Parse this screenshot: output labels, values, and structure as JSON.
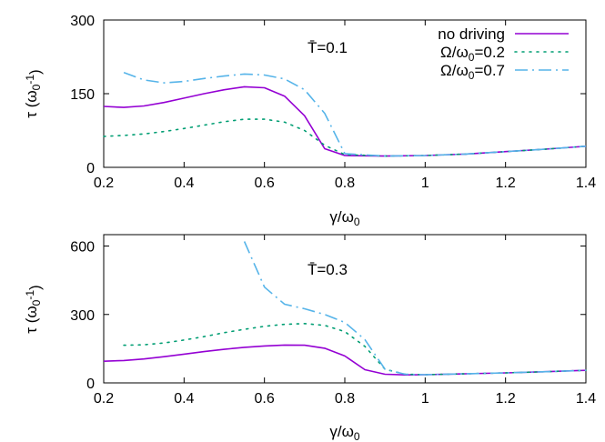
{
  "chart_data": [
    {
      "type": "line",
      "annotation": "T̄=0.1",
      "xlabel": "γ/ω0",
      "ylabel": "τ (ω0^-1)",
      "xlim": [
        0.2,
        1.4
      ],
      "ylim": [
        0,
        300
      ],
      "x_ticks": [
        "0.2",
        "0.4",
        "0.6",
        "0.8",
        "1",
        "1.2",
        "1.4"
      ],
      "y_ticks": [
        "0",
        "150",
        "300"
      ],
      "legend_position": "top-right",
      "series": [
        {
          "name": "no driving",
          "color": "#9400d3",
          "style": "solid",
          "x": [
            0.2,
            0.25,
            0.3,
            0.35,
            0.4,
            0.45,
            0.5,
            0.55,
            0.6,
            0.65,
            0.7,
            0.75,
            0.8,
            0.9,
            1.0,
            1.1,
            1.2,
            1.3,
            1.4
          ],
          "y": [
            124,
            122,
            125,
            132,
            141,
            150,
            158,
            164,
            162,
            145,
            105,
            38,
            24,
            23,
            24,
            27,
            32,
            37,
            43
          ]
        },
        {
          "name": "Ω/ω0=0.2",
          "color": "#009e73",
          "style": "dotted",
          "x": [
            0.2,
            0.25,
            0.3,
            0.35,
            0.4,
            0.45,
            0.5,
            0.55,
            0.6,
            0.65,
            0.7,
            0.75,
            0.8,
            0.9,
            1.0,
            1.1,
            1.2,
            1.3,
            1.4
          ],
          "y": [
            63,
            65,
            68,
            73,
            79,
            86,
            93,
            98,
            98,
            92,
            75,
            45,
            26,
            23,
            24,
            27,
            32,
            37,
            43
          ]
        },
        {
          "name": "Ω/ω0=0.7",
          "color": "#56b4e9",
          "style": "dashdot",
          "x": [
            0.25,
            0.3,
            0.35,
            0.4,
            0.45,
            0.5,
            0.55,
            0.6,
            0.65,
            0.7,
            0.75,
            0.8,
            0.9,
            1.0,
            1.1,
            1.2,
            1.3,
            1.4
          ],
          "y": [
            193,
            178,
            172,
            175,
            181,
            186,
            190,
            188,
            180,
            158,
            110,
            28,
            23,
            24,
            27,
            32,
            37,
            43
          ]
        }
      ]
    },
    {
      "type": "line",
      "annotation": "T̄=0.3",
      "xlabel": "γ/ω0",
      "ylabel": "τ (ω0^-1)",
      "xlim": [
        0.2,
        1.4
      ],
      "ylim": [
        0,
        650
      ],
      "x_ticks": [
        "0.2",
        "0.4",
        "0.6",
        "0.8",
        "1",
        "1.2",
        "1.4"
      ],
      "y_ticks": [
        "0",
        "300",
        "600"
      ],
      "series": [
        {
          "name": "no driving",
          "color": "#9400d3",
          "style": "solid",
          "x": [
            0.2,
            0.25,
            0.3,
            0.35,
            0.4,
            0.45,
            0.5,
            0.55,
            0.6,
            0.65,
            0.7,
            0.75,
            0.8,
            0.85,
            0.9,
            0.95,
            1.0,
            1.1,
            1.2,
            1.3,
            1.4
          ],
          "y": [
            95,
            98,
            105,
            115,
            126,
            137,
            147,
            156,
            162,
            166,
            165,
            152,
            118,
            58,
            38,
            35,
            36,
            40,
            44,
            49,
            55
          ]
        },
        {
          "name": "Ω/ω0=0.2",
          "color": "#009e73",
          "style": "dotted",
          "x": [
            0.25,
            0.3,
            0.35,
            0.4,
            0.45,
            0.5,
            0.55,
            0.6,
            0.65,
            0.7,
            0.75,
            0.8,
            0.85,
            0.9,
            0.95,
            1.0,
            1.1,
            1.2,
            1.3,
            1.4
          ],
          "y": [
            165,
            167,
            175,
            188,
            203,
            220,
            235,
            248,
            257,
            260,
            252,
            225,
            160,
            60,
            38,
            36,
            40,
            44,
            49,
            55
          ]
        },
        {
          "name": "Ω/ω0=0.7",
          "color": "#56b4e9",
          "style": "dashdot",
          "x": [
            0.55,
            0.6,
            0.65,
            0.7,
            0.75,
            0.8,
            0.85,
            0.9,
            0.95,
            1.0,
            1.1,
            1.2,
            1.3,
            1.4
          ],
          "y": [
            620,
            420,
            345,
            325,
            300,
            265,
            190,
            60,
            38,
            36,
            40,
            44,
            49,
            55
          ]
        }
      ]
    }
  ],
  "legend": {
    "entries": [
      {
        "label": "no driving",
        "color": "#9400d3",
        "style": "solid"
      },
      {
        "label": "Ω/ω0=0.2",
        "color": "#009e73",
        "style": "dotted"
      },
      {
        "label": "Ω/ω0=0.7",
        "color": "#56b4e9",
        "style": "dashdot"
      }
    ]
  }
}
